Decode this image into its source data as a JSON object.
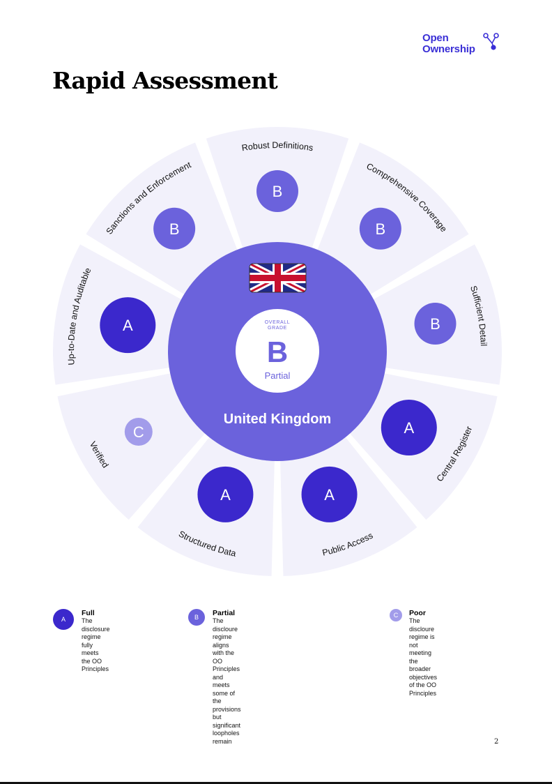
{
  "brand": {
    "line1": "Open",
    "line2": "Ownership"
  },
  "page_title": "Rapid Assessment",
  "country": "United Kingdom",
  "overall": {
    "label_line1": "OVERALL",
    "label_line2": "GRADE",
    "grade": "B",
    "grade_text": "Partial"
  },
  "colors": {
    "full": "#3b28cc",
    "partial": "#6b62dc",
    "poor": "#a29cea",
    "segment_bg": "#f2f1fb",
    "brand": "#3a2fd6"
  },
  "segments": [
    {
      "label": "Robust Definitions",
      "grade": "B"
    },
    {
      "label": "Comprehensive Coverage",
      "grade": "B"
    },
    {
      "label": "Sufficient Detail",
      "grade": "B"
    },
    {
      "label": "Central Register",
      "grade": "A"
    },
    {
      "label": "Public Access",
      "grade": "A"
    },
    {
      "label": "Structured Data",
      "grade": "A"
    },
    {
      "label": "Verified",
      "grade": "C"
    },
    {
      "label": "Up-to-Date and Auditable",
      "grade": "A"
    },
    {
      "label": "Sanctions and Enforcement",
      "grade": "B"
    }
  ],
  "legend": [
    {
      "grade": "A",
      "title": "Full",
      "lines": [
        "The disclosure",
        "regime fully meets",
        "the OO Principles"
      ]
    },
    {
      "grade": "B",
      "title": "Partial",
      "lines": [
        "The discloure regime aligns with the OO",
        "Principles and meets some of the provisions",
        "but significant loopholes remain"
      ]
    },
    {
      "grade": "C",
      "title": "Poor",
      "lines": [
        "The discloure regime is not",
        "meeting the broader objectives",
        "of the OO Principles"
      ]
    }
  ],
  "page_number": "2"
}
